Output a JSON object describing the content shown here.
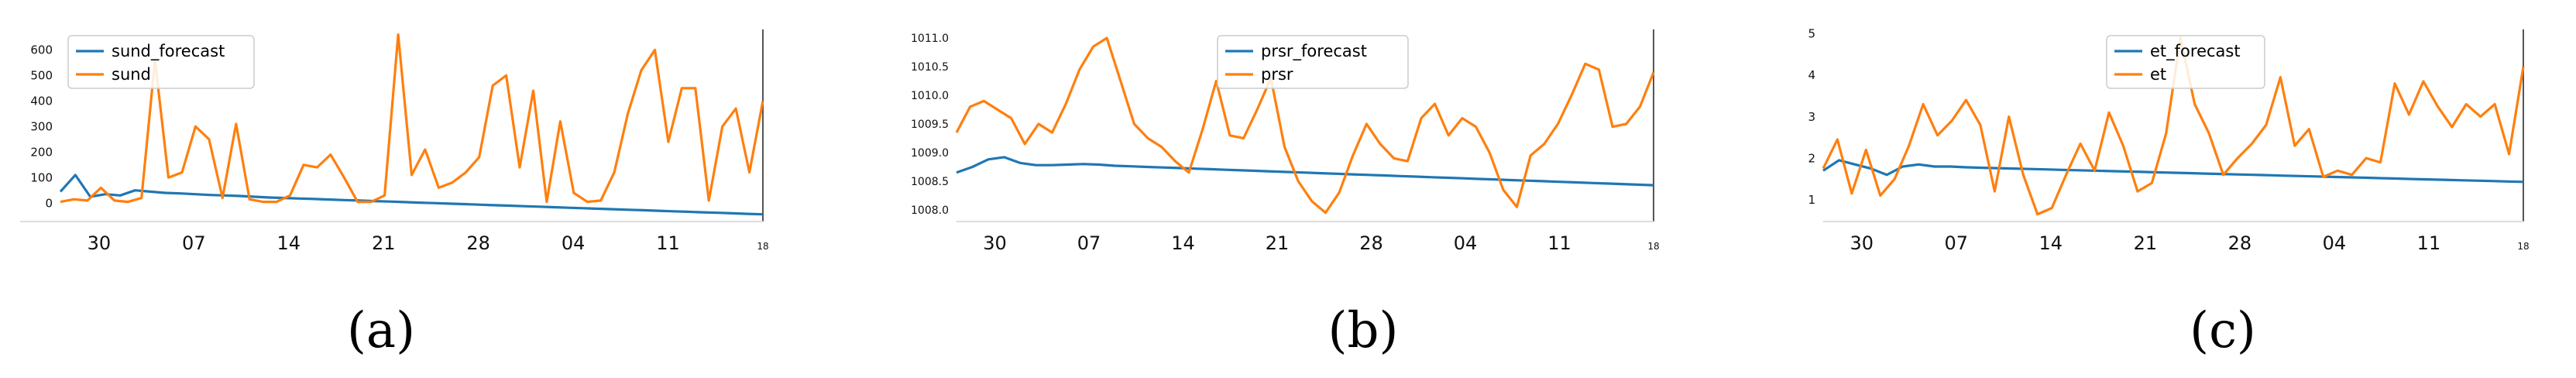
{
  "colors": {
    "forecast": "#1f77b4",
    "actual": "#ff7f0e",
    "axis": "#555555",
    "legend_border": "#cccccc"
  },
  "chart_data": [
    {
      "type": "line",
      "caption": "(a)",
      "x_ticks": [
        "30",
        "07",
        "14",
        "21",
        "28",
        "04",
        "11",
        "18"
      ],
      "y_ticks": [
        "0",
        "100",
        "200",
        "300",
        "400",
        "500",
        "600"
      ],
      "ylim": [
        -60,
        680
      ],
      "legend_position": "upper-left",
      "series": [
        {
          "name": "sund_forecast",
          "values": [
            45,
            110,
            25,
            35,
            30,
            50,
            45,
            40,
            38,
            35,
            32,
            30,
            28,
            25,
            22,
            20,
            18,
            16,
            14,
            12,
            10,
            8,
            6,
            4,
            2,
            0,
            -2,
            -4,
            -6,
            -8,
            -10,
            -12,
            -14,
            -16,
            -18,
            -20,
            -22,
            -24,
            -26,
            -28,
            -30,
            -32,
            -34,
            -36,
            -38,
            -40,
            -42,
            -44
          ]
        },
        {
          "name": "sund",
          "values": [
            5,
            15,
            10,
            60,
            10,
            5,
            20,
            560,
            100,
            120,
            300,
            250,
            20,
            310,
            15,
            5,
            5,
            30,
            150,
            140,
            190,
            100,
            5,
            5,
            30,
            660,
            110,
            210,
            60,
            80,
            120,
            180,
            460,
            500,
            140,
            440,
            5,
            320,
            40,
            5,
            10,
            120,
            350,
            520,
            600,
            240,
            450,
            450,
            10,
            300,
            370,
            120,
            400
          ]
        }
      ]
    },
    {
      "type": "line",
      "caption": "(b)",
      "x_ticks": [
        "30",
        "07",
        "14",
        "21",
        "28",
        "04",
        "11",
        "18"
      ],
      "y_ticks": [
        "1008.0",
        "1008.5",
        "1009.0",
        "1009.5",
        "1010.0",
        "1010.5",
        "1011.0"
      ],
      "ylim": [
        1007.85,
        1011.15
      ],
      "legend_position": "upper-center",
      "series": [
        {
          "name": "prsr_forecast",
          "values": [
            1008.65,
            1008.75,
            1008.88,
            1008.92,
            1008.82,
            1008.78,
            1008.78,
            1008.79,
            1008.8,
            1008.79,
            1008.77,
            1008.76,
            1008.75,
            1008.74,
            1008.73,
            1008.72,
            1008.71,
            1008.7,
            1008.69,
            1008.68,
            1008.67,
            1008.66,
            1008.65,
            1008.64,
            1008.63,
            1008.62,
            1008.61,
            1008.6,
            1008.59,
            1008.58,
            1008.57,
            1008.56,
            1008.55,
            1008.54,
            1008.53,
            1008.52,
            1008.51,
            1008.5,
            1008.49,
            1008.48,
            1008.47,
            1008.46,
            1008.45,
            1008.44,
            1008.43
          ]
        },
        {
          "name": "prsr",
          "values": [
            1009.35,
            1009.8,
            1009.9,
            1009.75,
            1009.6,
            1009.15,
            1009.5,
            1009.35,
            1009.85,
            1010.45,
            1010.85,
            1011.0,
            1010.25,
            1009.5,
            1009.25,
            1009.1,
            1008.85,
            1008.65,
            1009.4,
            1010.25,
            1009.3,
            1009.25,
            1009.75,
            1010.3,
            1009.1,
            1008.5,
            1008.15,
            1007.95,
            1008.3,
            1008.95,
            1009.5,
            1009.15,
            1008.9,
            1008.85,
            1009.6,
            1009.85,
            1009.3,
            1009.6,
            1009.45,
            1009.0,
            1008.35,
            1008.05,
            1008.95,
            1009.15,
            1009.5,
            1010.0,
            1010.55,
            1010.45,
            1009.45,
            1009.5,
            1009.8,
            1010.4
          ]
        }
      ]
    },
    {
      "type": "line",
      "caption": "(c)",
      "x_ticks": [
        "30",
        "07",
        "14",
        "21",
        "28",
        "04",
        "11",
        "18"
      ],
      "y_ticks": [
        "1",
        "2",
        "3",
        "4",
        "5"
      ],
      "ylim": [
        0.55,
        5.1
      ],
      "legend_position": "upper-center",
      "series": [
        {
          "name": "et_forecast",
          "values": [
            1.7,
            1.95,
            1.85,
            1.75,
            1.6,
            1.8,
            1.85,
            1.8,
            1.8,
            1.78,
            1.77,
            1.76,
            1.75,
            1.74,
            1.73,
            1.72,
            1.71,
            1.7,
            1.69,
            1.68,
            1.67,
            1.66,
            1.65,
            1.64,
            1.63,
            1.62,
            1.61,
            1.6,
            1.59,
            1.58,
            1.57,
            1.56,
            1.55,
            1.54,
            1.53,
            1.52,
            1.51,
            1.5,
            1.49,
            1.48,
            1.47,
            1.46,
            1.45,
            1.44,
            1.43
          ]
        },
        {
          "name": "et",
          "values": [
            1.75,
            2.45,
            1.15,
            2.2,
            1.1,
            1.5,
            2.3,
            3.3,
            2.55,
            2.9,
            3.4,
            2.8,
            1.2,
            3.0,
            1.6,
            0.65,
            0.8,
            1.6,
            2.35,
            1.7,
            3.1,
            2.3,
            1.2,
            1.4,
            2.6,
            4.9,
            3.3,
            2.6,
            1.6,
            2.0,
            2.35,
            2.8,
            3.95,
            2.3,
            2.7,
            1.55,
            1.7,
            1.6,
            2.0,
            1.9,
            3.8,
            3.05,
            3.85,
            3.25,
            2.75,
            3.3,
            3.0,
            3.3,
            2.1,
            4.2
          ]
        }
      ]
    }
  ]
}
